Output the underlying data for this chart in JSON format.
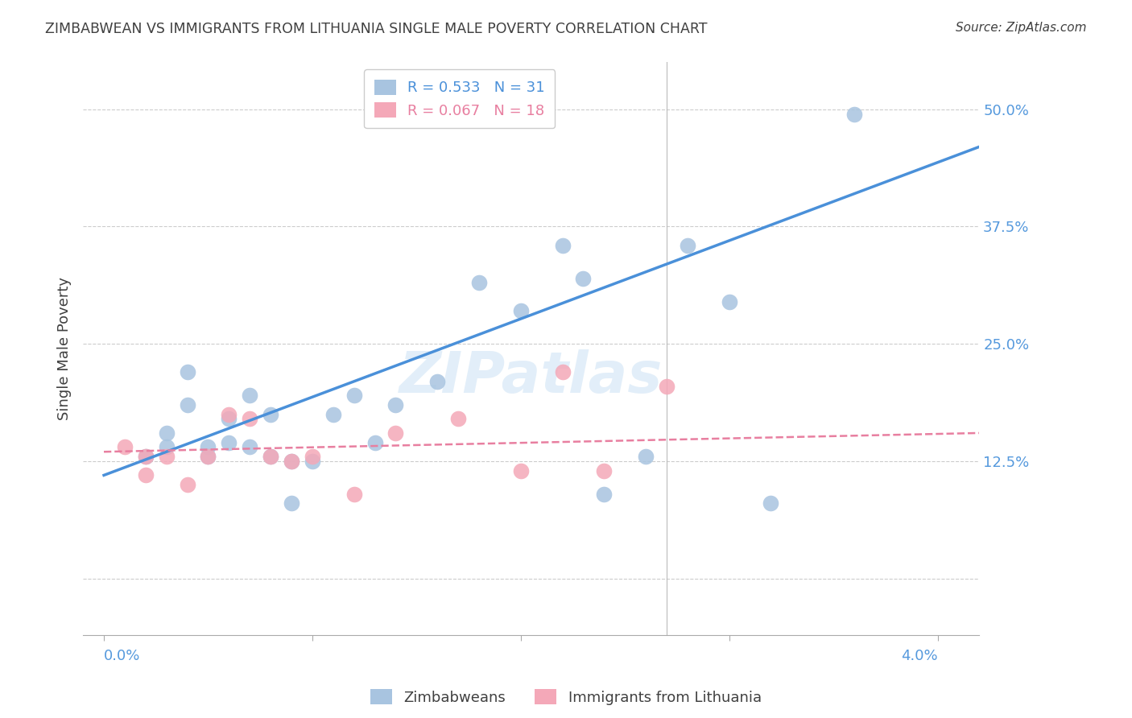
{
  "title": "ZIMBABWEAN VS IMMIGRANTS FROM LITHUANIA SINGLE MALE POVERTY CORRELATION CHART",
  "source": "Source: ZipAtlas.com",
  "ylabel": "Single Male Poverty",
  "y_ticks": [
    0.0,
    0.125,
    0.25,
    0.375,
    0.5
  ],
  "y_tick_labels": [
    "",
    "12.5%",
    "25.0%",
    "37.5%",
    "50.0%"
  ],
  "x_lim": [
    -0.001,
    0.042
  ],
  "y_lim": [
    -0.06,
    0.55
  ],
  "legend_entries": [
    {
      "label": "R = 0.533   N = 31",
      "color": "#a8c4e0"
    },
    {
      "label": "R = 0.067   N = 18",
      "color": "#f4a8b8"
    }
  ],
  "legend_bottom": [
    {
      "label": "Zimbabweans",
      "color": "#a8c4e0"
    },
    {
      "label": "Immigrants from Lithuania",
      "color": "#f4a8b8"
    }
  ],
  "blue_scatter_x": [
    0.002,
    0.003,
    0.003,
    0.004,
    0.004,
    0.005,
    0.005,
    0.006,
    0.006,
    0.007,
    0.007,
    0.008,
    0.008,
    0.009,
    0.009,
    0.01,
    0.011,
    0.012,
    0.013,
    0.014,
    0.016,
    0.018,
    0.02,
    0.022,
    0.023,
    0.024,
    0.026,
    0.028,
    0.03,
    0.032,
    0.036
  ],
  "blue_scatter_y": [
    0.13,
    0.155,
    0.14,
    0.22,
    0.185,
    0.14,
    0.13,
    0.145,
    0.17,
    0.195,
    0.14,
    0.13,
    0.175,
    0.125,
    0.08,
    0.125,
    0.175,
    0.195,
    0.145,
    0.185,
    0.21,
    0.315,
    0.285,
    0.355,
    0.32,
    0.09,
    0.13,
    0.355,
    0.295,
    0.08,
    0.495
  ],
  "pink_scatter_x": [
    0.001,
    0.002,
    0.002,
    0.003,
    0.004,
    0.005,
    0.006,
    0.007,
    0.008,
    0.009,
    0.01,
    0.012,
    0.014,
    0.017,
    0.02,
    0.022,
    0.024,
    0.027
  ],
  "pink_scatter_y": [
    0.14,
    0.13,
    0.11,
    0.13,
    0.1,
    0.13,
    0.175,
    0.17,
    0.13,
    0.125,
    0.13,
    0.09,
    0.155,
    0.17,
    0.115,
    0.22,
    0.115,
    0.205
  ],
  "blue_line_x": [
    0.0,
    0.042
  ],
  "blue_line_y": [
    0.11,
    0.46
  ],
  "pink_line_x": [
    0.0,
    0.042
  ],
  "pink_line_y": [
    0.135,
    0.155
  ],
  "blue_color": "#4a90d9",
  "pink_color": "#e87fa0",
  "blue_scatter_color": "#a8c4e0",
  "pink_scatter_color": "#f4a8b8",
  "watermark": "ZIPatlas",
  "grid_color": "#cccccc",
  "title_color": "#404040",
  "tick_label_color": "#5599dd",
  "legend_text_color_blue": "#4a90d9",
  "legend_text_color_pink": "#e87fa0"
}
